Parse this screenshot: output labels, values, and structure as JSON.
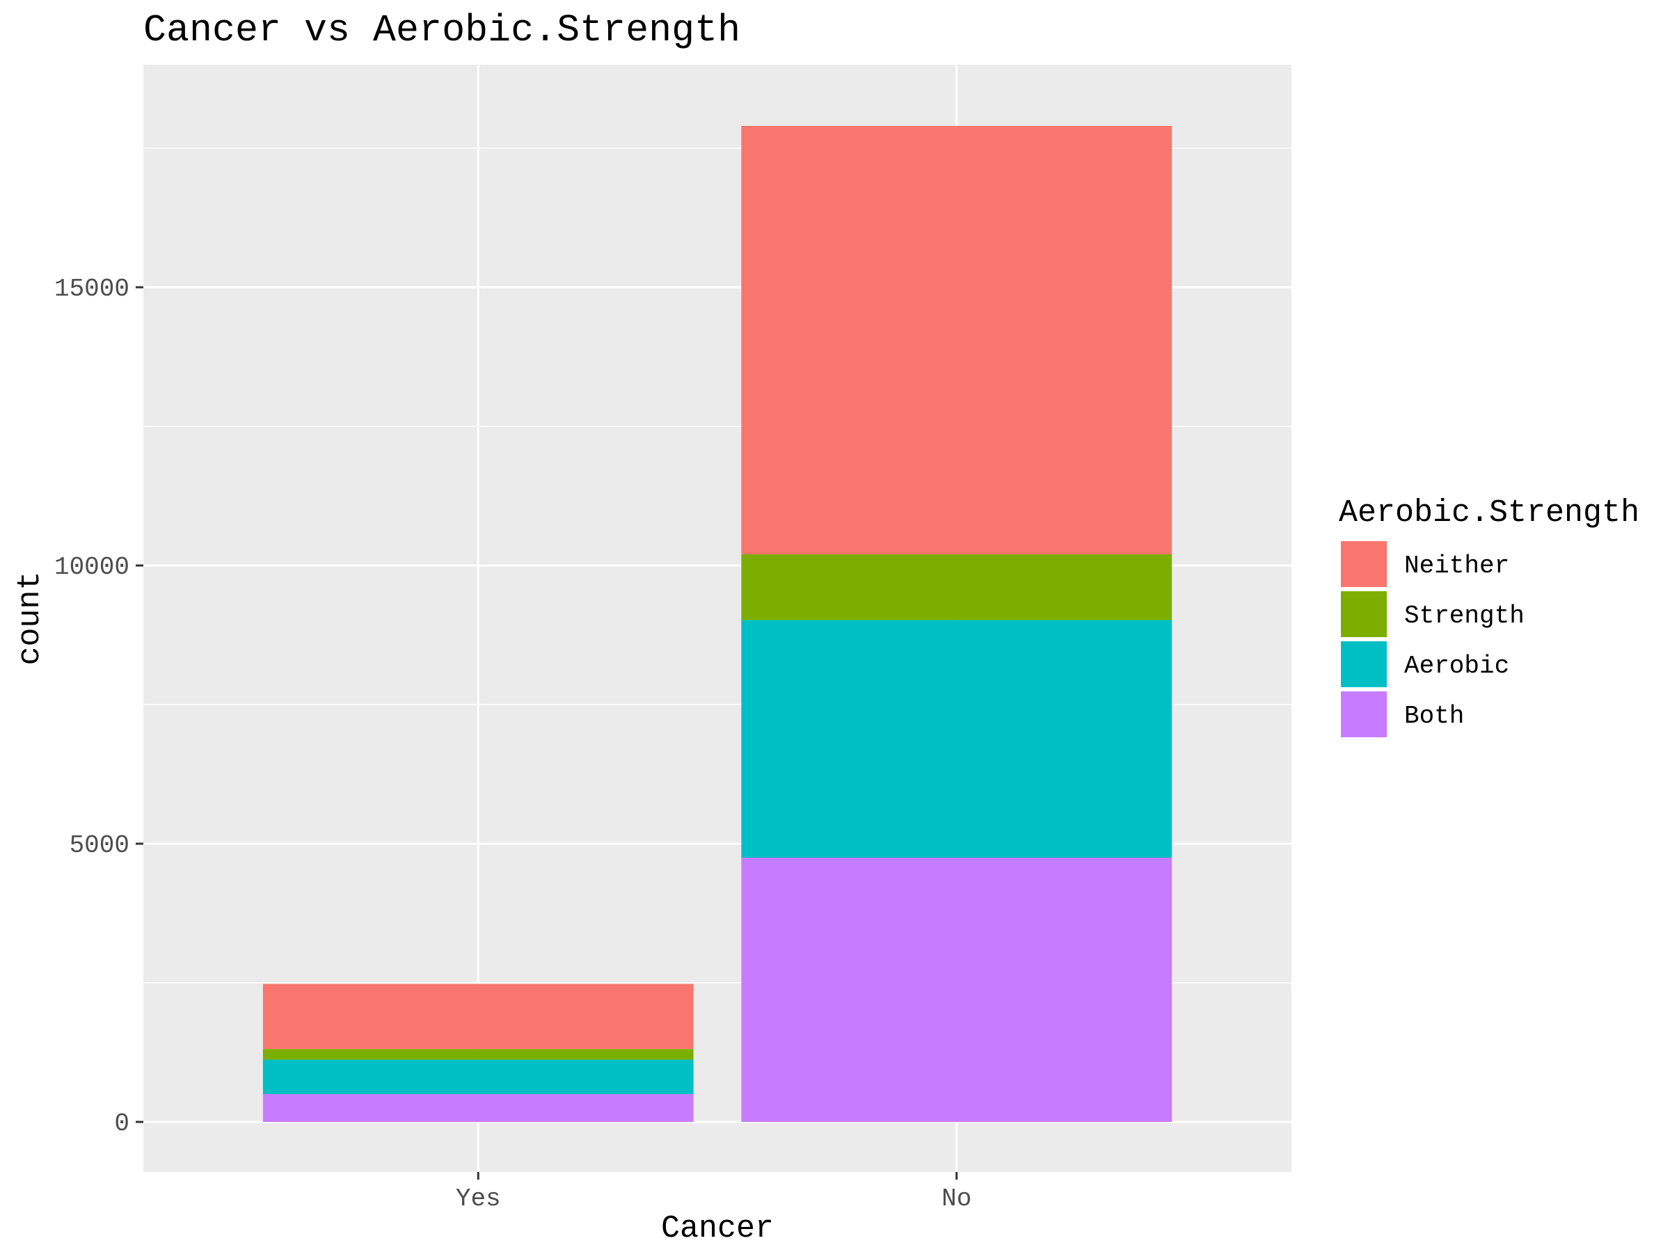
{
  "chart_data": {
    "type": "bar",
    "stacked": true,
    "title": "Cancer vs Aerobic.Strength",
    "xlabel": "Cancer",
    "ylabel": "count",
    "categories": [
      "Yes",
      "No"
    ],
    "ylim": [
      -900,
      19000
    ],
    "yticks": [
      0,
      5000,
      10000,
      15000
    ],
    "grid": true,
    "legend": {
      "title": "Aerobic.Strength",
      "placement": "right"
    },
    "series": [
      {
        "name": "Both",
        "color": "#C77CFF",
        "values": [
          500,
          4750
        ]
      },
      {
        "name": "Aerobic",
        "color": "#00BFC4",
        "values": [
          620,
          4270
        ]
      },
      {
        "name": "Strength",
        "color": "#7CAE00",
        "values": [
          190,
          1180
        ]
      },
      {
        "name": "Neither",
        "color": "#F8766D",
        "values": [
          1170,
          7700
        ]
      }
    ],
    "legend_order": [
      "Neither",
      "Strength",
      "Aerobic",
      "Both"
    ]
  }
}
